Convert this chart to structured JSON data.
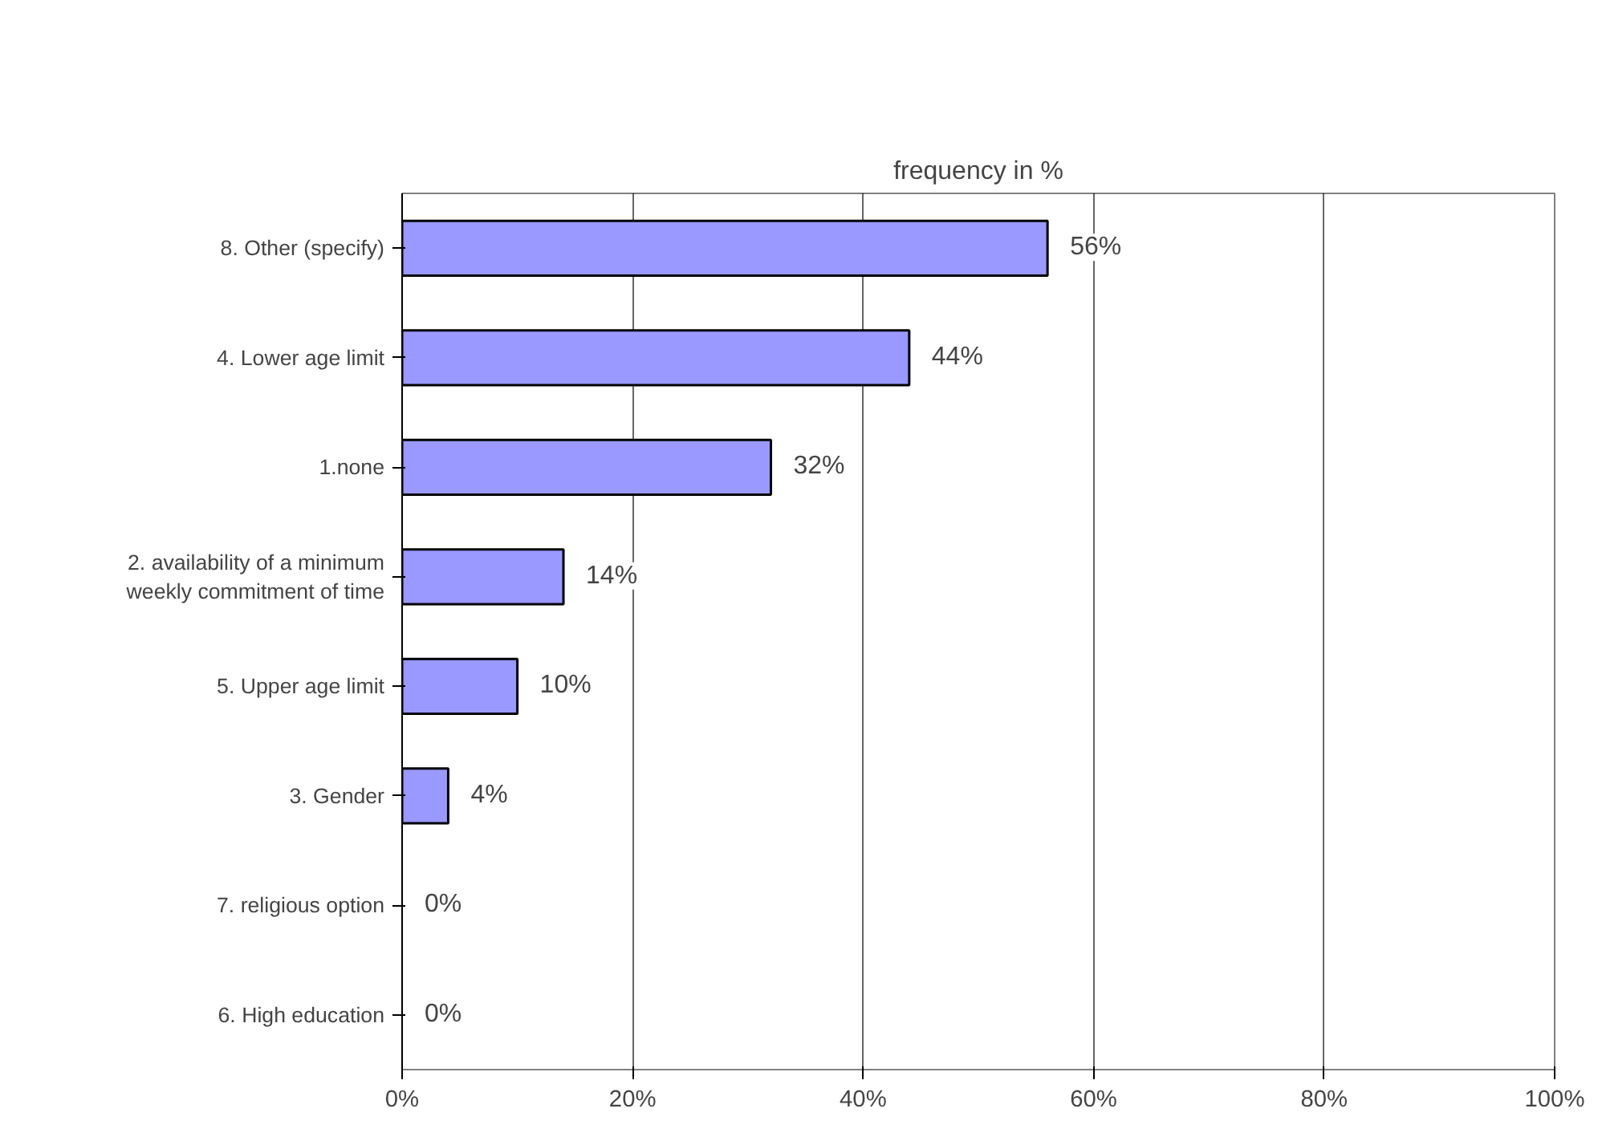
{
  "chart_data": {
    "type": "bar",
    "orientation": "horizontal",
    "title": "frequency in %",
    "categories": [
      "8. Other (specify)",
      "4. Lower age limit",
      "1.none",
      "2. availability of a minimum weekly commitment of time",
      "5. Upper age limit",
      "3. Gender",
      "7. religious option",
      "6. High education"
    ],
    "values": [
      56,
      44,
      32,
      14,
      10,
      4,
      0,
      0
    ],
    "value_labels": [
      "56%",
      "44%",
      "32%",
      "14%",
      "10%",
      "4%",
      "0%",
      "0%"
    ],
    "color": "#9999ff",
    "xlim": [
      0,
      100
    ],
    "xticks": [
      {
        "value": 0,
        "label": "0%"
      },
      {
        "value": 20,
        "label": "20%"
      },
      {
        "value": 40,
        "label": "40%"
      },
      {
        "value": 60,
        "label": "60%"
      },
      {
        "value": 80,
        "label": "80%"
      },
      {
        "value": 100,
        "label": "100%"
      }
    ],
    "grid": "x"
  }
}
